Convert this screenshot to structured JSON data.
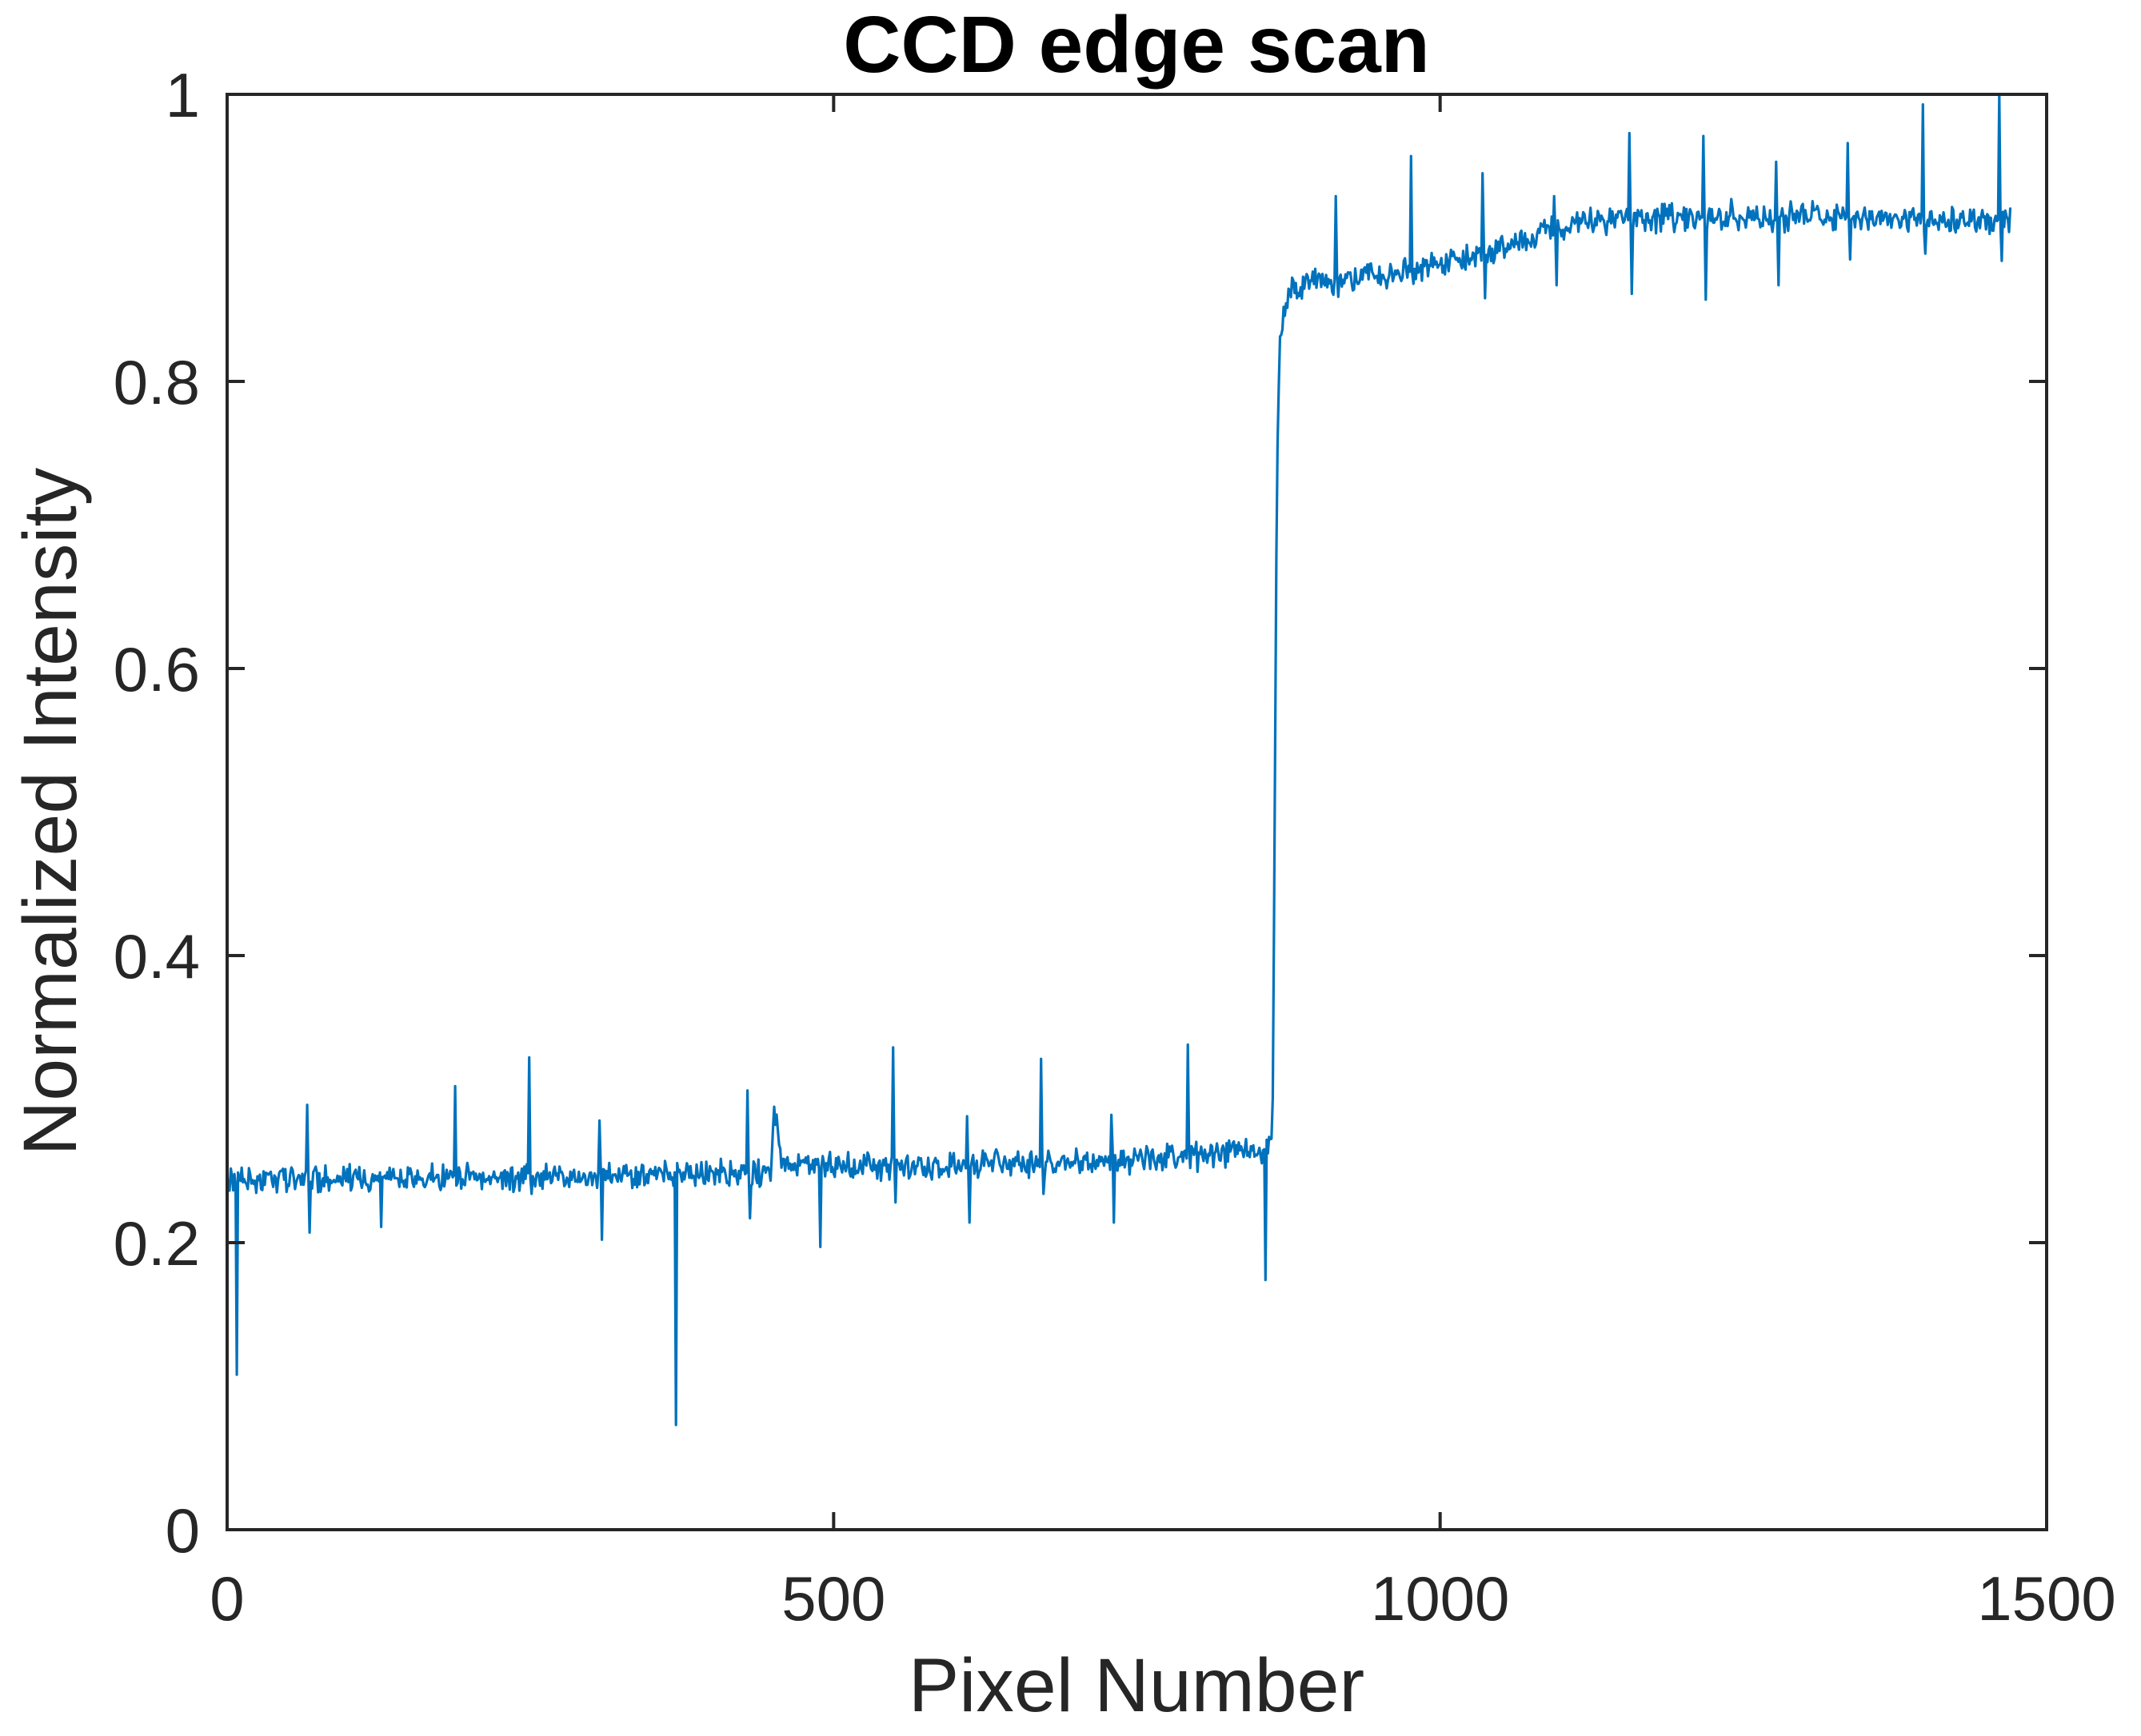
{
  "title": "CCD edge scan",
  "axes": {
    "xlabel": "Pixel Number",
    "ylabel": "Normalized Intensity",
    "x_tick_labels": [
      "0",
      "500",
      "1000",
      "1500"
    ],
    "y_tick_labels": [
      "0",
      "0.2",
      "0.4",
      "0.6",
      "0.8",
      "1"
    ]
  },
  "colors": {
    "line": "#0072BD",
    "axis": "#262626",
    "tick_text": "#262626",
    "title_text": "#000000",
    "background": "#ffffff"
  },
  "chart_data": {
    "type": "line",
    "title": "CCD edge scan",
    "xlabel": "Pixel Number",
    "ylabel": "Normalized Intensity",
    "xlim": [
      0,
      1500
    ],
    "ylim": [
      0,
      1
    ],
    "x_ticks": [
      0,
      500,
      1000,
      1500
    ],
    "y_ticks": [
      0,
      0.2,
      0.4,
      0.6,
      0.8,
      1
    ],
    "grid": false,
    "legend": null,
    "line_color": "#0072BD",
    "n_points": 1470,
    "noise_amplitude": 0.0115,
    "noise_seed": 11,
    "description": "Noisy CCD edge-scan profile: dark baseline near 0.245 from pixel 0 to ~860, sharp intensity step at pixel ~862 rising to ~0.87, then gradual climb to a bright plateau near 0.915 from pixel ~1125 to 1470, with narrow single-pixel glitch spikes up and down along both levels.",
    "envelope_keypoints": [
      [
        1,
        0.2435
      ],
      [
        100,
        0.2445
      ],
      [
        200,
        0.2445
      ],
      [
        300,
        0.246
      ],
      [
        380,
        0.247
      ],
      [
        440,
        0.249
      ],
      [
        448,
        0.252
      ],
      [
        451,
        0.291
      ],
      [
        453,
        0.282
      ],
      [
        457,
        0.256
      ],
      [
        520,
        0.252
      ],
      [
        600,
        0.2535
      ],
      [
        680,
        0.2555
      ],
      [
        740,
        0.257
      ],
      [
        800,
        0.26
      ],
      [
        830,
        0.2625
      ],
      [
        848,
        0.264
      ],
      [
        858,
        0.265
      ],
      [
        861,
        0.268
      ],
      [
        862,
        0.3
      ],
      [
        863,
        0.42
      ],
      [
        864,
        0.55
      ],
      [
        865,
        0.67
      ],
      [
        866,
        0.76
      ],
      [
        868,
        0.825
      ],
      [
        871,
        0.848
      ],
      [
        875,
        0.859
      ],
      [
        882,
        0.8655
      ],
      [
        895,
        0.869
      ],
      [
        920,
        0.8715
      ],
      [
        950,
        0.8745
      ],
      [
        980,
        0.878
      ],
      [
        1010,
        0.8835
      ],
      [
        1040,
        0.8905
      ],
      [
        1065,
        0.897
      ],
      [
        1085,
        0.9045
      ],
      [
        1105,
        0.9095
      ],
      [
        1125,
        0.9125
      ],
      [
        1160,
        0.9135
      ],
      [
        1220,
        0.9135
      ],
      [
        1280,
        0.9145
      ],
      [
        1340,
        0.9145
      ],
      [
        1400,
        0.9135
      ],
      [
        1470,
        0.9125
      ]
    ],
    "spikes": [
      [
        8,
        0.108
      ],
      [
        66,
        0.296
      ],
      [
        68,
        0.207
      ],
      [
        127,
        0.211
      ],
      [
        188,
        0.309
      ],
      [
        249,
        0.329
      ],
      [
        251,
        0.234
      ],
      [
        307,
        0.285
      ],
      [
        309,
        0.202
      ],
      [
        370,
        0.073
      ],
      [
        429,
        0.306
      ],
      [
        431,
        0.217
      ],
      [
        489,
        0.197
      ],
      [
        549,
        0.336
      ],
      [
        551,
        0.228
      ],
      [
        610,
        0.288
      ],
      [
        612,
        0.214
      ],
      [
        671,
        0.328
      ],
      [
        673,
        0.234
      ],
      [
        729,
        0.289
      ],
      [
        731,
        0.214
      ],
      [
        792,
        0.338
      ],
      [
        794,
        0.252
      ],
      [
        856,
        0.174
      ],
      [
        914,
        0.929
      ],
      [
        916,
        0.859
      ],
      [
        976,
        0.957
      ],
      [
        978,
        0.868
      ],
      [
        1035,
        0.945
      ],
      [
        1037,
        0.858
      ],
      [
        1094,
        0.929
      ],
      [
        1096,
        0.867
      ],
      [
        1156,
        0.973
      ],
      [
        1158,
        0.861
      ],
      [
        1217,
        0.971
      ],
      [
        1219,
        0.857
      ],
      [
        1240,
        0.927
      ],
      [
        1277,
        0.953
      ],
      [
        1279,
        0.867
      ],
      [
        1336,
        0.966
      ],
      [
        1338,
        0.885
      ],
      [
        1398,
        0.993
      ],
      [
        1400,
        0.889
      ],
      [
        1461,
        1.0
      ],
      [
        1463,
        0.884
      ]
    ]
  }
}
